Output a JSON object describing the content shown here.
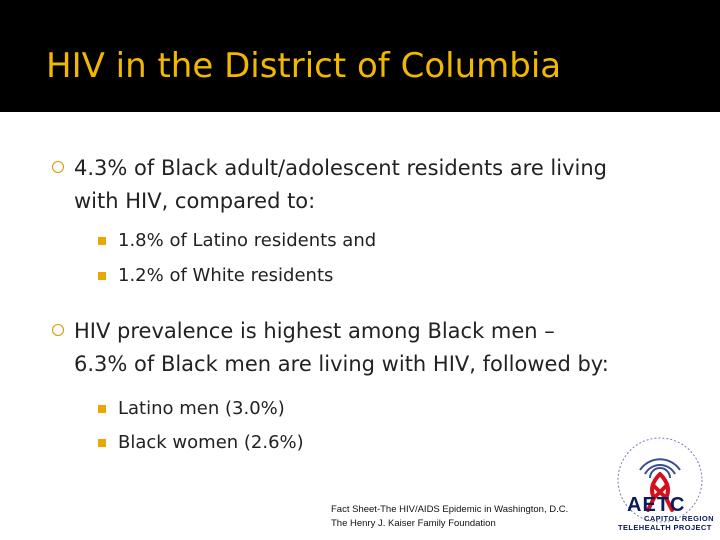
{
  "slide": {
    "title": "HIV in the District of Columbia",
    "colors": {
      "title_bar": "#000000",
      "title_text": "#f2b800",
      "bullet_accent": "#e8a800"
    }
  },
  "bullets": [
    {
      "line1": "4.3% of Black adult/adolescent residents are living",
      "line2": "with HIV, compared to:",
      "subitems": [
        "1.8% of Latino residents and",
        "1.2% of White residents"
      ]
    },
    {
      "line1": "HIV prevalence is highest among Black men –",
      "line2": "6.3% of Black men are living with HIV, followed by:",
      "subitems": [
        "Latino men (3.0%)",
        "Black women (2.6%)"
      ]
    }
  ],
  "footnote": {
    "line1": "Fact Sheet-The HIV/AIDS Epidemic in Washington, D.C.",
    "line2": "The Henry J. Kaiser Family Foundation"
  },
  "logo": {
    "icon": "red-ribbon-signal-icon",
    "word": "AETC",
    "line1": "CAPITOL REGION",
    "line2": "TELEHEALTH PROJECT"
  }
}
